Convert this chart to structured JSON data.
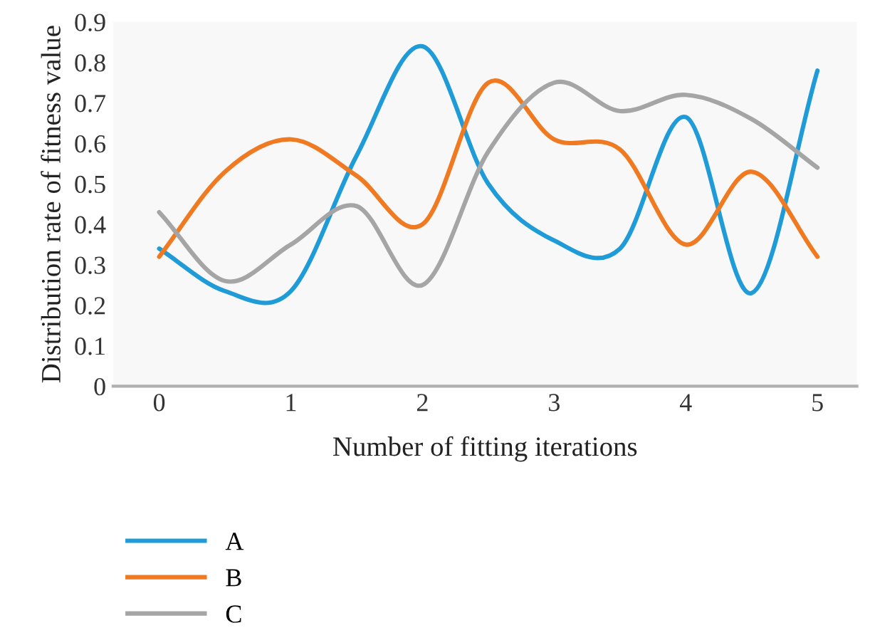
{
  "chart_data": {
    "type": "line",
    "xlabel": "Number of fitting iterations",
    "ylabel": "Distribution rate of fitness value",
    "x": [
      0,
      0.5,
      1,
      1.5,
      2,
      2.5,
      3,
      3.5,
      4,
      4.5,
      5
    ],
    "series": [
      {
        "name": "A",
        "color": "#1f9bd7",
        "values": [
          0.34,
          0.235,
          0.235,
          0.57,
          0.84,
          0.5,
          0.36,
          0.34,
          0.665,
          0.23,
          0.78
        ]
      },
      {
        "name": "B",
        "color": "#f07a22",
        "values": [
          0.32,
          0.53,
          0.61,
          0.52,
          0.4,
          0.75,
          0.61,
          0.585,
          0.35,
          0.53,
          0.32
        ]
      },
      {
        "name": "C",
        "color": "#a5a5a5",
        "values": [
          0.43,
          0.26,
          0.35,
          0.445,
          0.25,
          0.58,
          0.75,
          0.68,
          0.72,
          0.66,
          0.54
        ]
      }
    ],
    "xlim": [
      -0.35,
      5.3
    ],
    "ylim": [
      0,
      0.9
    ],
    "xticks": [
      0,
      1,
      2,
      3,
      4,
      5
    ],
    "yticks": [
      0,
      0.1,
      0.2,
      0.3,
      0.4,
      0.5,
      0.6,
      0.7,
      0.8,
      0.9
    ],
    "grid": false,
    "legend": "bottom",
    "marker": "none",
    "line_style": "solid"
  }
}
